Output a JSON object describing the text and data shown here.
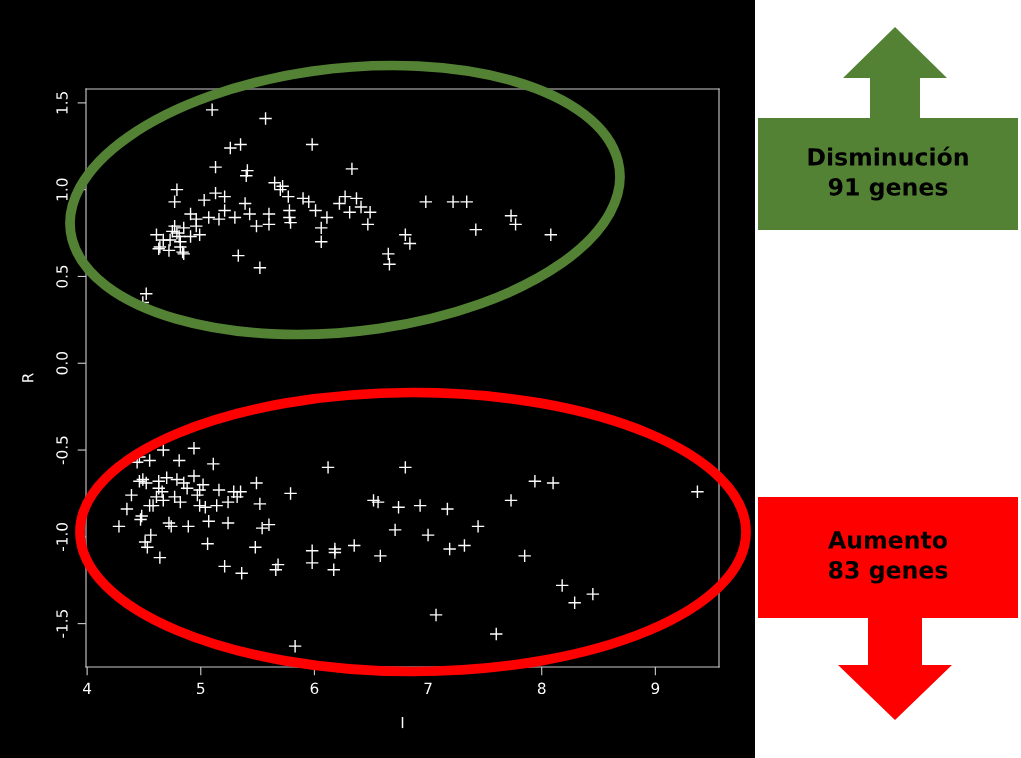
{
  "chart_data": {
    "type": "scatter",
    "xlabel": "I",
    "ylabel": "R",
    "annotations": [
      "Disminución\n91 genes",
      "Aumento\n83 genes"
    ],
    "xlim": [
      3.99,
      9.56
    ],
    "ylim": [
      -1.75,
      1.58
    ],
    "xticks": [
      4,
      5,
      6,
      7,
      8,
      9
    ],
    "yticks": [
      {
        "value": -1.5,
        "label": "-1.5"
      },
      {
        "value": -1.0,
        "label": "-1.0"
      },
      {
        "value": -0.5,
        "label": "-0.5"
      },
      {
        "value": 0.0,
        "label": "0.0"
      },
      {
        "value": 0.5,
        "label": "0.5"
      },
      {
        "value": 1.0,
        "label": "1.0"
      },
      {
        "value": 1.5,
        "label": "1.5"
      }
    ],
    "grid": false,
    "legend": false,
    "marker": "cross",
    "series": [
      {
        "color": "#ffffff",
        "x": [
          5.1,
          5.57,
          5.26,
          5.35,
          5.98,
          5.13,
          5.41,
          5.4,
          6.33,
          4.79,
          4.77,
          5.03,
          5.13,
          5.21,
          5.39,
          5.65,
          5.72,
          5.7,
          5.77,
          5.9,
          5.95,
          6.01,
          6.11,
          6.06,
          6.06,
          6.22,
          6.27,
          6.37,
          6.31,
          4.91,
          4.96,
          4.96,
          4.99,
          5.07,
          5.16,
          5.21,
          5.3,
          5.43,
          5.49,
          5.6,
          5.6,
          5.78,
          5.78,
          5.79,
          5.33,
          5.52,
          4.61,
          4.67,
          4.64,
          4.63,
          4.72,
          4.77,
          4.79,
          4.81,
          4.85,
          4.91,
          4.82,
          4.82,
          4.84,
          4.85,
          4.73,
          4.75,
          4.52,
          4.49,
          6.41,
          6.49,
          6.47,
          6.98,
          7.22,
          7.34,
          7.42,
          7.73,
          7.77,
          8.08,
          6.8,
          6.84,
          6.65,
          6.66,
          4.67,
          4.94,
          4.46,
          4.44,
          4.55,
          4.81,
          5.11,
          6.12,
          4.49,
          4.46,
          4.52,
          4.63,
          4.7,
          4.79,
          4.85,
          4.88,
          4.94,
          5.02,
          4.99,
          4.63,
          4.66,
          4.39,
          4.61,
          4.67,
          4.77,
          4.82,
          4.97,
          4.99,
          5.04,
          5.14,
          5.16,
          5.24,
          5.29,
          5.35,
          5.32,
          5.49,
          5.52,
          5.79,
          4.35,
          4.58,
          4.55,
          4.48,
          4.47,
          4.28,
          4.72,
          4.74,
          4.89,
          5.07,
          5.24,
          5.54,
          5.6,
          4.56,
          4.51,
          4.53,
          5.06,
          4.64,
          5.48,
          5.21,
          5.36,
          5.68,
          5.66,
          5.98,
          5.98,
          6.18,
          6.18,
          6.17,
          6.35,
          5.83,
          6.8,
          6.52,
          6.56,
          6.74,
          6.93,
          7.17,
          6.71,
          7.0,
          6.58,
          7.19,
          7.32,
          7.44,
          7.73,
          7.94,
          8.1,
          7.85,
          8.18,
          8.29,
          8.45,
          7.07,
          7.6,
          9.37
        ],
        "values": [
          1.46,
          1.41,
          1.24,
          1.26,
          1.26,
          1.13,
          1.11,
          1.08,
          1.12,
          1.0,
          0.93,
          0.94,
          0.98,
          0.96,
          0.92,
          1.04,
          1.02,
          1.0,
          0.96,
          0.95,
          0.93,
          0.88,
          0.84,
          0.78,
          0.7,
          0.92,
          0.96,
          0.95,
          0.87,
          0.86,
          0.83,
          0.79,
          0.74,
          0.84,
          0.83,
          0.88,
          0.84,
          0.86,
          0.79,
          0.86,
          0.8,
          0.88,
          0.84,
          0.81,
          0.62,
          0.55,
          0.74,
          0.71,
          0.67,
          0.66,
          0.65,
          0.79,
          0.75,
          0.73,
          0.78,
          0.73,
          0.7,
          0.67,
          0.64,
          0.63,
          0.71,
          0.76,
          0.4,
          0.35,
          0.9,
          0.87,
          0.8,
          0.93,
          0.93,
          0.93,
          0.77,
          0.85,
          0.8,
          0.74,
          0.74,
          0.69,
          0.63,
          0.57,
          -0.5,
          -0.49,
          -0.54,
          -0.57,
          -0.56,
          -0.56,
          -0.58,
          -0.6,
          -0.67,
          -0.68,
          -0.69,
          -0.68,
          -0.66,
          -0.67,
          -0.69,
          -0.72,
          -0.65,
          -0.7,
          -0.73,
          -0.72,
          -0.74,
          -0.76,
          -0.77,
          -0.79,
          -0.77,
          -0.8,
          -0.76,
          -0.82,
          -0.83,
          -0.82,
          -0.73,
          -0.8,
          -0.74,
          -0.74,
          -0.77,
          -0.69,
          -0.81,
          -0.75,
          -0.84,
          -0.82,
          -0.82,
          -0.88,
          -0.9,
          -0.94,
          -0.92,
          -0.94,
          -0.94,
          -0.91,
          -0.92,
          -0.95,
          -0.93,
          -0.99,
          -1.03,
          -1.06,
          -1.04,
          -1.12,
          -1.06,
          -1.17,
          -1.21,
          -1.16,
          -1.19,
          -1.08,
          -1.15,
          -1.07,
          -1.09,
          -1.19,
          -1.05,
          -1.63,
          -0.6,
          -0.79,
          -0.8,
          -0.83,
          -0.82,
          -0.84,
          -0.96,
          -0.99,
          -1.11,
          -1.07,
          -1.05,
          -0.94,
          -0.79,
          -0.68,
          -0.69,
          -1.11,
          -1.28,
          -1.38,
          -1.33,
          -1.45,
          -1.56,
          -0.74
        ]
      }
    ]
  }
}
